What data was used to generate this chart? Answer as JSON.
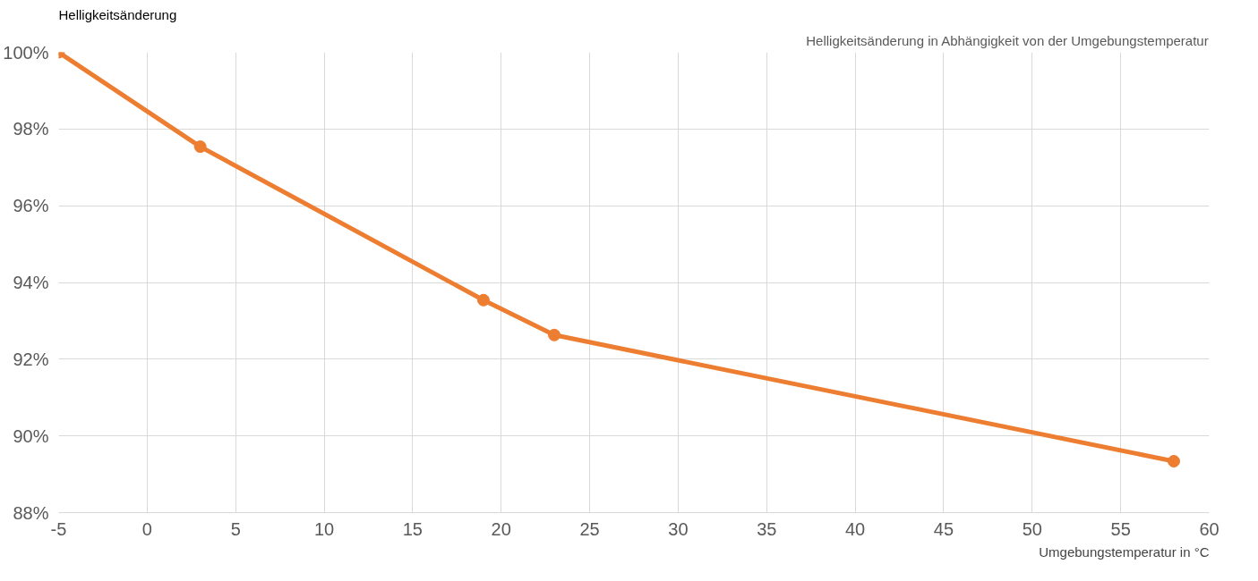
{
  "chart_data": {
    "type": "line",
    "title": "Helligkeitsänderung in Abhängigkeit von der Umgebungstemperatur",
    "xlabel": "Umgebungstemperatur in °C",
    "ylabel": "Helligkeitsänderung",
    "x": [
      -5,
      3,
      19,
      23,
      58
    ],
    "series": [
      {
        "color": "#ed7d31",
        "values": [
          100,
          97.54,
          93.54,
          92.63,
          89.34
        ]
      }
    ],
    "xlim": [
      -5,
      60
    ],
    "xticks": [
      -5,
      0,
      5,
      10,
      15,
      20,
      25,
      30,
      35,
      40,
      45,
      50,
      55,
      60
    ],
    "ylim": [
      88,
      100
    ],
    "yticks": [
      {
        "value": 88,
        "label": "88%"
      },
      {
        "value": 90,
        "label": "90%"
      },
      {
        "value": 92,
        "label": "92%"
      },
      {
        "value": 94,
        "label": "94%"
      },
      {
        "value": 96,
        "label": "96%"
      },
      {
        "value": 98,
        "label": "98%"
      },
      {
        "value": 100,
        "label": "100%"
      }
    ],
    "grid": true,
    "marker": "circle",
    "line_style": "solid"
  }
}
